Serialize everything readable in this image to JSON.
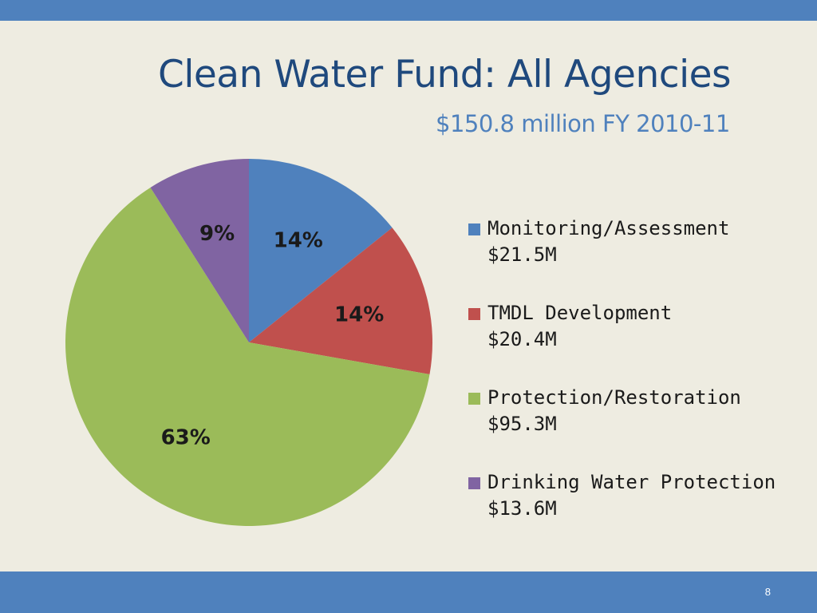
{
  "slide": {
    "title": "Clean Water Fund: All Agencies",
    "subtitle": "$150.8 million FY 2010-11",
    "page_number": "8"
  },
  "chart_data": {
    "type": "pie",
    "title": "",
    "legend_position": "right",
    "slices": [
      {
        "label": "Monitoring/Assessment",
        "amount": "$21.5M",
        "value": 21.5,
        "percent_label": "14%",
        "color": "#4f81bd"
      },
      {
        "label": "TMDL Development",
        "amount": "$20.4M",
        "value": 20.4,
        "percent_label": "14%",
        "color": "#c0504d"
      },
      {
        "label": "Protection/Restoration",
        "amount": "$95.3M",
        "value": 95.3,
        "percent_label": "63%",
        "color": "#9bbb59"
      },
      {
        "label": "Drinking Water Protection",
        "amount": "$13.6M",
        "value": 13.6,
        "percent_label": "9%",
        "color": "#8064a2"
      }
    ]
  }
}
